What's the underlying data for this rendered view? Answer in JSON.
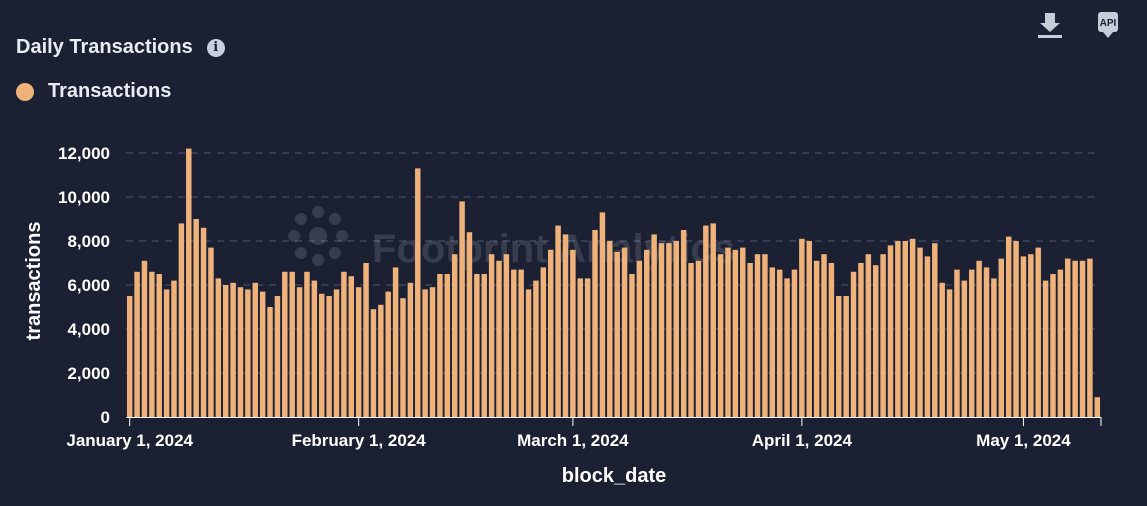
{
  "header": {
    "title": "Daily Transactions"
  },
  "toolbar": {
    "api_label": "API"
  },
  "legend": {
    "label": "Transactions",
    "color": "#eeb27a"
  },
  "watermark": "Footprint Analytics",
  "colors": {
    "background": "#1b2033",
    "bar": "#eeb27a",
    "grid": "#3d4560"
  },
  "chart_data": {
    "type": "bar",
    "xlabel": "block_date",
    "ylabel": "transactions",
    "ylim": [
      0,
      13000
    ],
    "y_ticks": [
      "0",
      "2,000",
      "4,000",
      "6,000",
      "8,000",
      "10,000",
      "12,000"
    ],
    "x_ticks": [
      "January 1, 2024",
      "February 1, 2024",
      "March 1, 2024",
      "April 1, 2024",
      "May 1, 2024"
    ],
    "grid": true,
    "legend_position": "top-left",
    "series": [
      {
        "name": "Transactions",
        "start_date": "2024-01-01",
        "values": [
          5500,
          6600,
          7100,
          6600,
          6500,
          5800,
          6200,
          8800,
          12200,
          9000,
          8600,
          7700,
          6300,
          6000,
          6100,
          5900,
          5800,
          6100,
          5700,
          5000,
          5500,
          6600,
          6600,
          5900,
          6600,
          6200,
          5600,
          5500,
          5800,
          6600,
          6400,
          5900,
          7000,
          4900,
          5100,
          5700,
          6800,
          5400,
          6100,
          11300,
          5800,
          5900,
          6500,
          6500,
          7400,
          9800,
          8400,
          6500,
          6500,
          7400,
          7100,
          7400,
          6700,
          6700,
          5800,
          6200,
          6800,
          7600,
          8700,
          8300,
          7600,
          6300,
          6300,
          8500,
          9300,
          8000,
          7500,
          7700,
          6500,
          7100,
          7600,
          8300,
          7900,
          7900,
          8000,
          8500,
          7000,
          7100,
          8700,
          8800,
          7400,
          7700,
          7600,
          7700,
          7000,
          7400,
          7400,
          6800,
          6700,
          6300,
          6700,
          8100,
          8000,
          7100,
          7400,
          7000,
          5500,
          5500,
          6600,
          7000,
          7400,
          6900,
          7400,
          7800,
          8000,
          8000,
          8100,
          7700,
          7300,
          7900,
          6100,
          5800,
          6700,
          6200,
          6700,
          7100,
          6800,
          6300,
          7200,
          8200,
          8000,
          7300,
          7400,
          7700,
          6200,
          6500,
          6700,
          7200,
          7100,
          7100,
          7200,
          900
        ]
      }
    ]
  }
}
